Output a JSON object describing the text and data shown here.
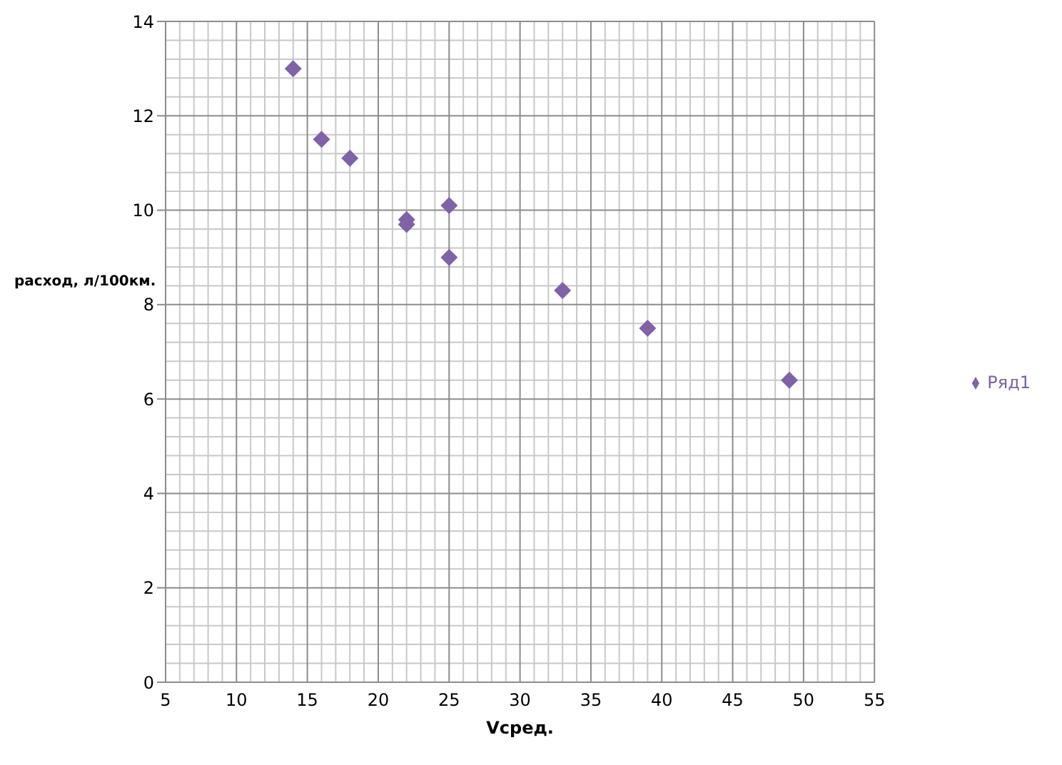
{
  "chart_data": {
    "type": "scatter",
    "xlabel": "Vсред.",
    "ylabel": "расход, л/100км.",
    "x": [
      14,
      16,
      18,
      22,
      22,
      25,
      25,
      33,
      39,
      49
    ],
    "series": [
      {
        "name": "Ряд1",
        "color": "#7f62a8",
        "values": [
          13,
          11.5,
          11.1,
          9.8,
          9.7,
          10.1,
          9,
          8.3,
          7.5,
          6.4
        ]
      }
    ],
    "xlim": [
      5,
      55
    ],
    "xticks": [
      5,
      10,
      15,
      20,
      25,
      30,
      35,
      40,
      45,
      50,
      55
    ],
    "ylim": [
      0,
      14
    ],
    "yticks": [
      0,
      2,
      4,
      6,
      8,
      10,
      12,
      14
    ],
    "grid": true,
    "legend": "right",
    "marker": "diamond"
  }
}
